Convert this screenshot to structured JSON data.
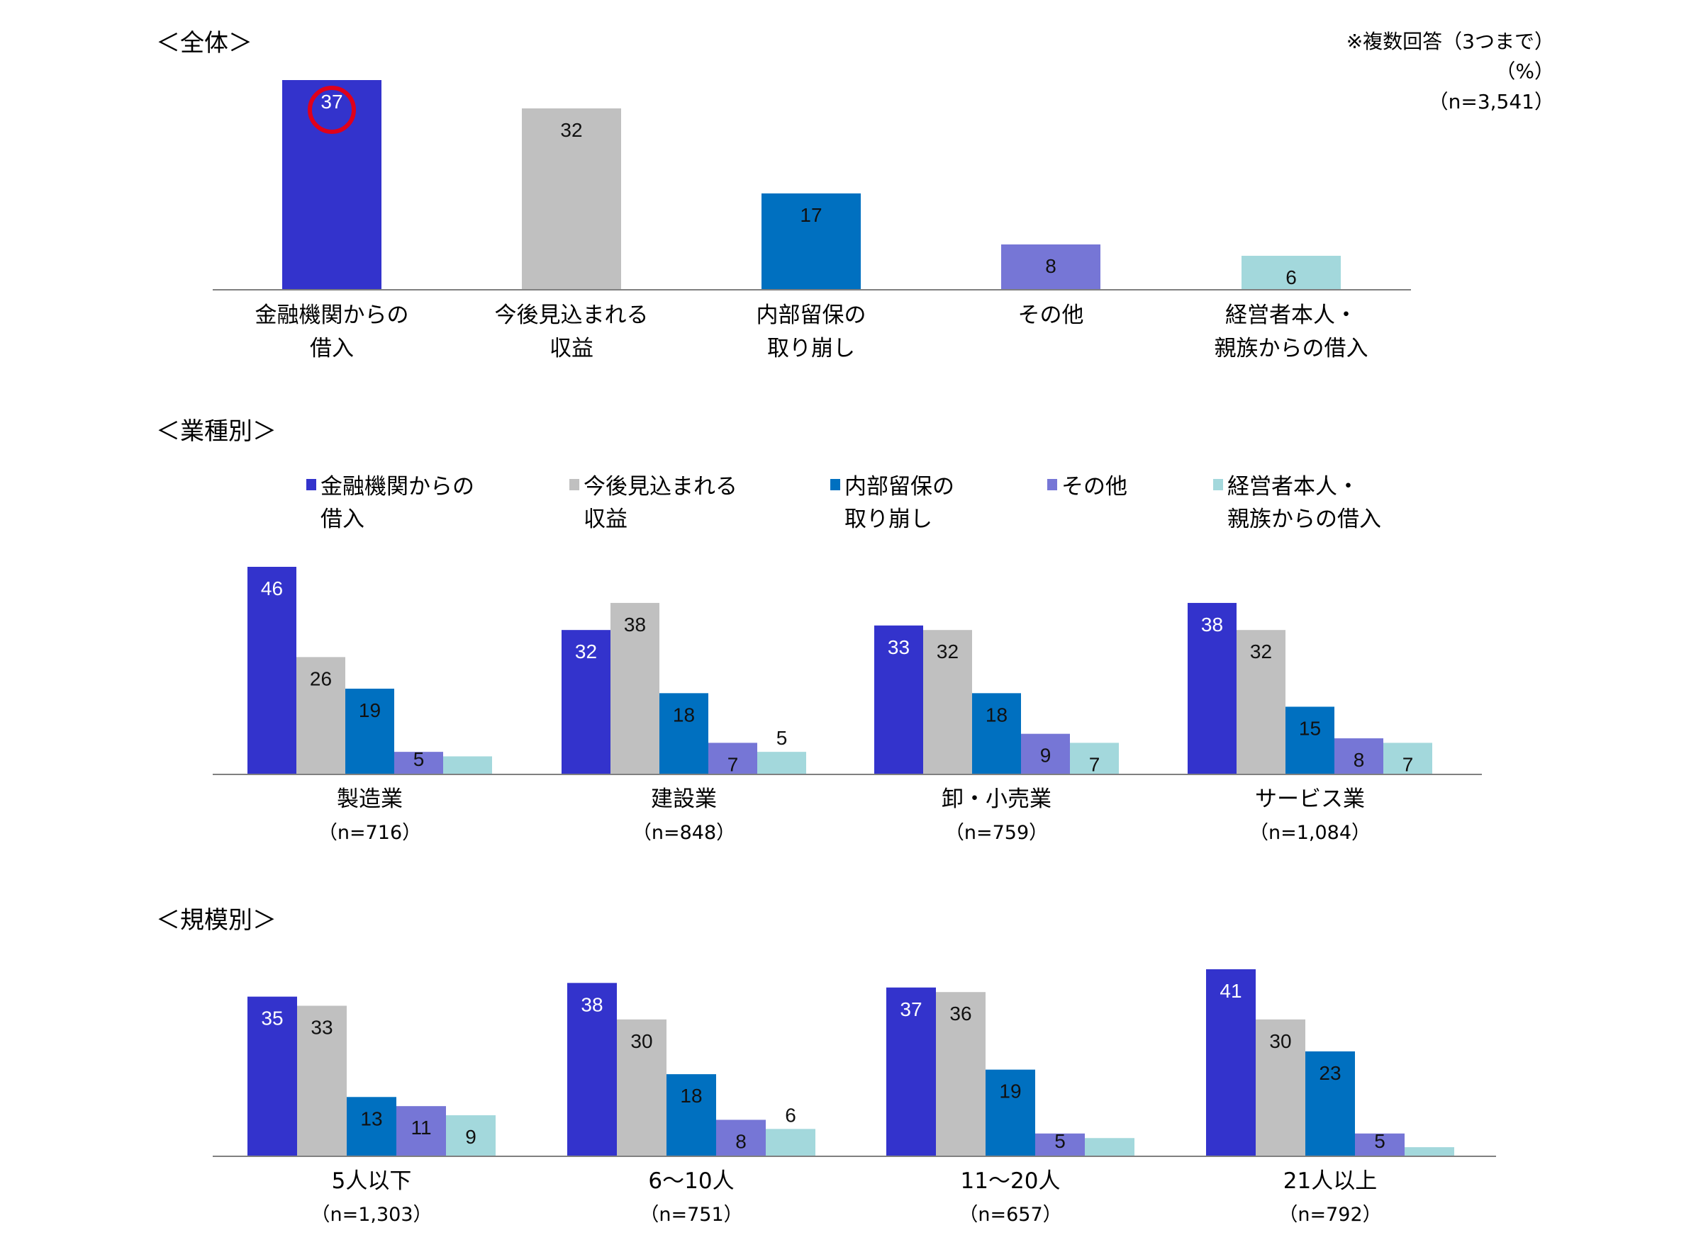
{
  "colors": {
    "blue_dark": "#3333CC",
    "gray": "#C0C0C0",
    "blue": "#0070C0",
    "purple": "#7676D6",
    "teal": "#A3D8DC",
    "highlight_ring": "#E0001A",
    "axis": "#808080"
  },
  "notes": {
    "multiple_answer": "※複数回答（3つまで）",
    "unit": "（%）",
    "total_n": "（n=3,541）"
  },
  "legend": [
    {
      "line1": "金融機関からの",
      "line2": "借入",
      "color": "#3333CC"
    },
    {
      "line1": "今後見込まれる",
      "line2": "収益",
      "color": "#C0C0C0"
    },
    {
      "line1": "内部留保の",
      "line2": "取り崩し",
      "color": "#0070C0"
    },
    {
      "line1": "その他",
      "line2": "",
      "color": "#7676D6"
    },
    {
      "line1": "経営者本人・",
      "line2": "親族からの借入",
      "color": "#A3D8DC"
    }
  ],
  "chart_data": [
    {
      "type": "bar",
      "title": "＜全体＞",
      "categories": [
        {
          "line1": "金融機関からの",
          "line2": "借入"
        },
        {
          "line1": "今後見込まれる",
          "line2": "収益"
        },
        {
          "line1": "内部留保の",
          "line2": "取り崩し"
        },
        {
          "line1": "その他",
          "line2": ""
        },
        {
          "line1": "経営者本人・",
          "line2": "親族からの借入"
        }
      ],
      "values": [
        37,
        32,
        17,
        8,
        6
      ],
      "colors": [
        "#3333CC",
        "#C0C0C0",
        "#0070C0",
        "#7676D6",
        "#A3D8DC"
      ],
      "highlight_index": 0,
      "ylabel": "",
      "ylim": [
        0,
        37
      ]
    },
    {
      "type": "bar",
      "title": "＜業種別＞",
      "groups": [
        {
          "label": "製造業",
          "n": "（n=716）",
          "values": [
            46,
            26,
            19,
            5,
            4
          ]
        },
        {
          "label": "建設業",
          "n": "（n=848）",
          "values": [
            32,
            38,
            18,
            7,
            5
          ]
        },
        {
          "label": "卸・小売業",
          "n": "（n=759）",
          "values": [
            33,
            32,
            18,
            9,
            7
          ]
        },
        {
          "label": "サービス業",
          "n": "（n=1,084）",
          "values": [
            38,
            32,
            15,
            8,
            7
          ]
        }
      ],
      "value_labels_shown": [
        [
          true,
          true,
          true,
          true,
          false
        ],
        [
          true,
          true,
          true,
          true,
          true
        ],
        [
          true,
          true,
          true,
          true,
          true
        ],
        [
          true,
          true,
          true,
          true,
          true
        ]
      ],
      "ylim": [
        0,
        46
      ]
    },
    {
      "type": "bar",
      "title": "＜規模別＞",
      "groups": [
        {
          "label": "5人以下",
          "n": "（n=1,303）",
          "values": [
            35,
            33,
            13,
            11,
            9
          ]
        },
        {
          "label": "6～10人",
          "n": "（n=751）",
          "values": [
            38,
            30,
            18,
            8,
            6
          ]
        },
        {
          "label": "11～20人",
          "n": "（n=657）",
          "values": [
            37,
            36,
            19,
            5,
            4
          ]
        },
        {
          "label": "21人以上",
          "n": "（n=792）",
          "values": [
            41,
            30,
            23,
            5,
            2
          ]
        }
      ],
      "value_labels_shown": [
        [
          true,
          true,
          true,
          true,
          true
        ],
        [
          true,
          true,
          true,
          true,
          true
        ],
        [
          true,
          true,
          true,
          true,
          false
        ],
        [
          true,
          true,
          true,
          true,
          false
        ]
      ],
      "ylim": [
        0,
        41
      ]
    }
  ]
}
